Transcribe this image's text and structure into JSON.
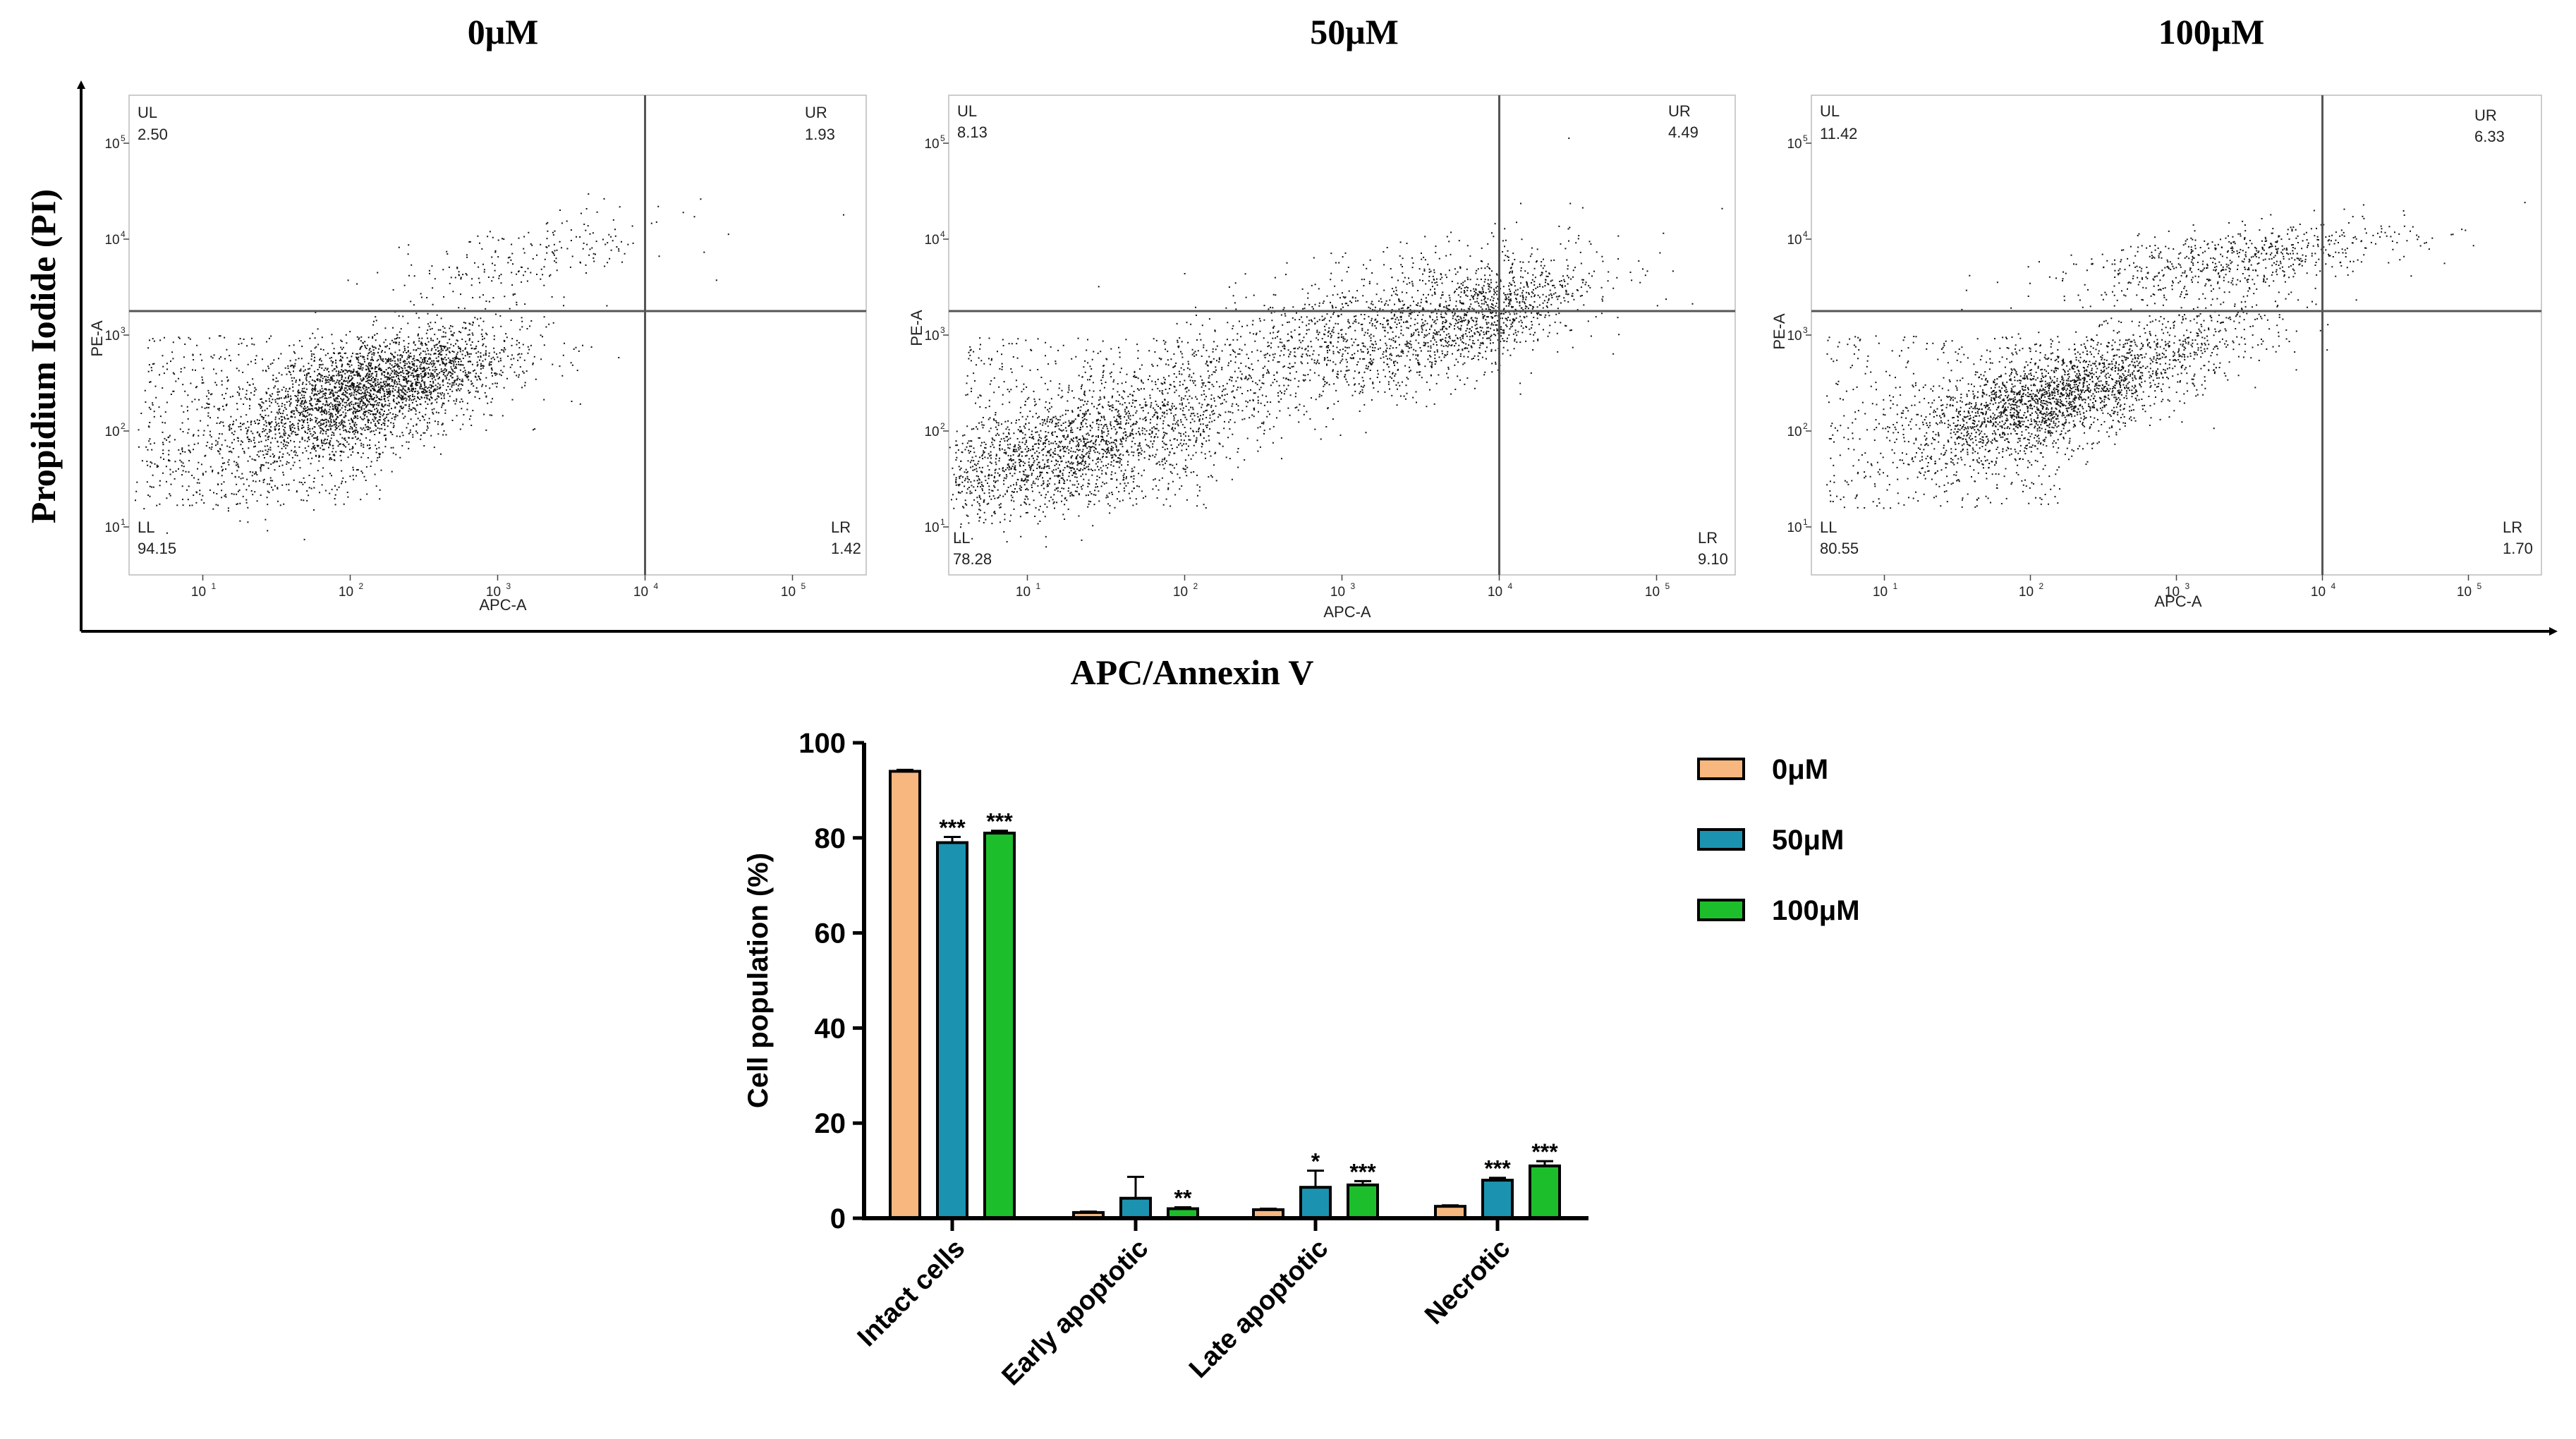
{
  "flow_panels": [
    {
      "title": "0μM",
      "quadrants": {
        "UL": "2.50",
        "UR": "1.93",
        "LL": "94.15",
        "LR": "1.42"
      },
      "x_axis_label": "APC-A",
      "y_axis_label": "PE-A",
      "gate_x": 4,
      "gate_y": 3.25,
      "clusters": [
        {
          "cx": 2.0,
          "cy": 2.3,
          "sx": 0.55,
          "sy": 0.4,
          "n": 2200
        },
        {
          "cx": 2.3,
          "cy": 2.55,
          "sx": 0.35,
          "sy": 0.25,
          "n": 900
        },
        {
          "cx": 3.2,
          "cy": 3.8,
          "sx": 0.5,
          "sy": 0.25,
          "n": 220
        }
      ]
    },
    {
      "title": "50μM",
      "quadrants": {
        "UL": "8.13",
        "UR": "4.49",
        "LL": "78.28",
        "LR": "9.10"
      },
      "x_axis_label": "APC-A",
      "y_axis_label": "PE-A",
      "gate_x": 4,
      "gate_y": 3.25,
      "clusters": [
        {
          "cx": 1.3,
          "cy": 1.8,
          "sx": 0.55,
          "sy": 0.35,
          "n": 1700
        },
        {
          "cx": 3.1,
          "cy": 3.0,
          "sx": 0.7,
          "sy": 0.45,
          "n": 1500
        },
        {
          "cx": 3.9,
          "cy": 3.2,
          "sx": 0.3,
          "sy": 0.3,
          "n": 700
        }
      ]
    },
    {
      "title": "100μM",
      "quadrants": {
        "UL": "11.42",
        "UR": "6.33",
        "LL": "80.55",
        "LR": "1.70"
      },
      "x_axis_label": "APC-A",
      "y_axis_label": "PE-A",
      "gate_x": 4,
      "gate_y": 3.25,
      "clusters": [
        {
          "cx": 2.1,
          "cy": 2.3,
          "sx": 0.45,
          "sy": 0.3,
          "n": 1900
        },
        {
          "cx": 3.0,
          "cy": 2.9,
          "sx": 0.45,
          "sy": 0.3,
          "n": 500
        },
        {
          "cx": 3.4,
          "cy": 3.8,
          "sx": 0.6,
          "sy": 0.2,
          "n": 650
        }
      ]
    }
  ],
  "flow_axis_titles": {
    "x": "APC/Annexin V",
    "y": "Propidium Iodide (PI)"
  },
  "chart_data": {
    "type": "bar",
    "title": "",
    "xlabel": "",
    "ylabel": "Cell population (%)",
    "ylim": [
      0,
      100
    ],
    "yticks": [
      0,
      20,
      40,
      60,
      80,
      100
    ],
    "categories": [
      "Intact cells",
      "Early apoptotic",
      "Late apoptotic",
      "Necrotic"
    ],
    "series": [
      {
        "name": "0μM",
        "color": "#F7B77F",
        "values": [
          94,
          1.2,
          1.8,
          2.5
        ],
        "errors": [
          0.3,
          0.2,
          0.2,
          0.2
        ],
        "stars": [
          "",
          "",
          "",
          ""
        ]
      },
      {
        "name": "50μM",
        "color": "#1B93B0",
        "values": [
          79,
          4.2,
          6.5,
          8
        ],
        "errors": [
          1.2,
          4.5,
          3.5,
          0.5
        ],
        "stars": [
          "***",
          "",
          "*",
          "***"
        ]
      },
      {
        "name": "100μM",
        "color": "#1CBF2B",
        "values": [
          81,
          2,
          7,
          11
        ],
        "errors": [
          0.5,
          0.3,
          0.8,
          1.0
        ],
        "stars": [
          "***",
          "**",
          "***",
          "***"
        ]
      }
    ],
    "legend_position": "top-right"
  }
}
